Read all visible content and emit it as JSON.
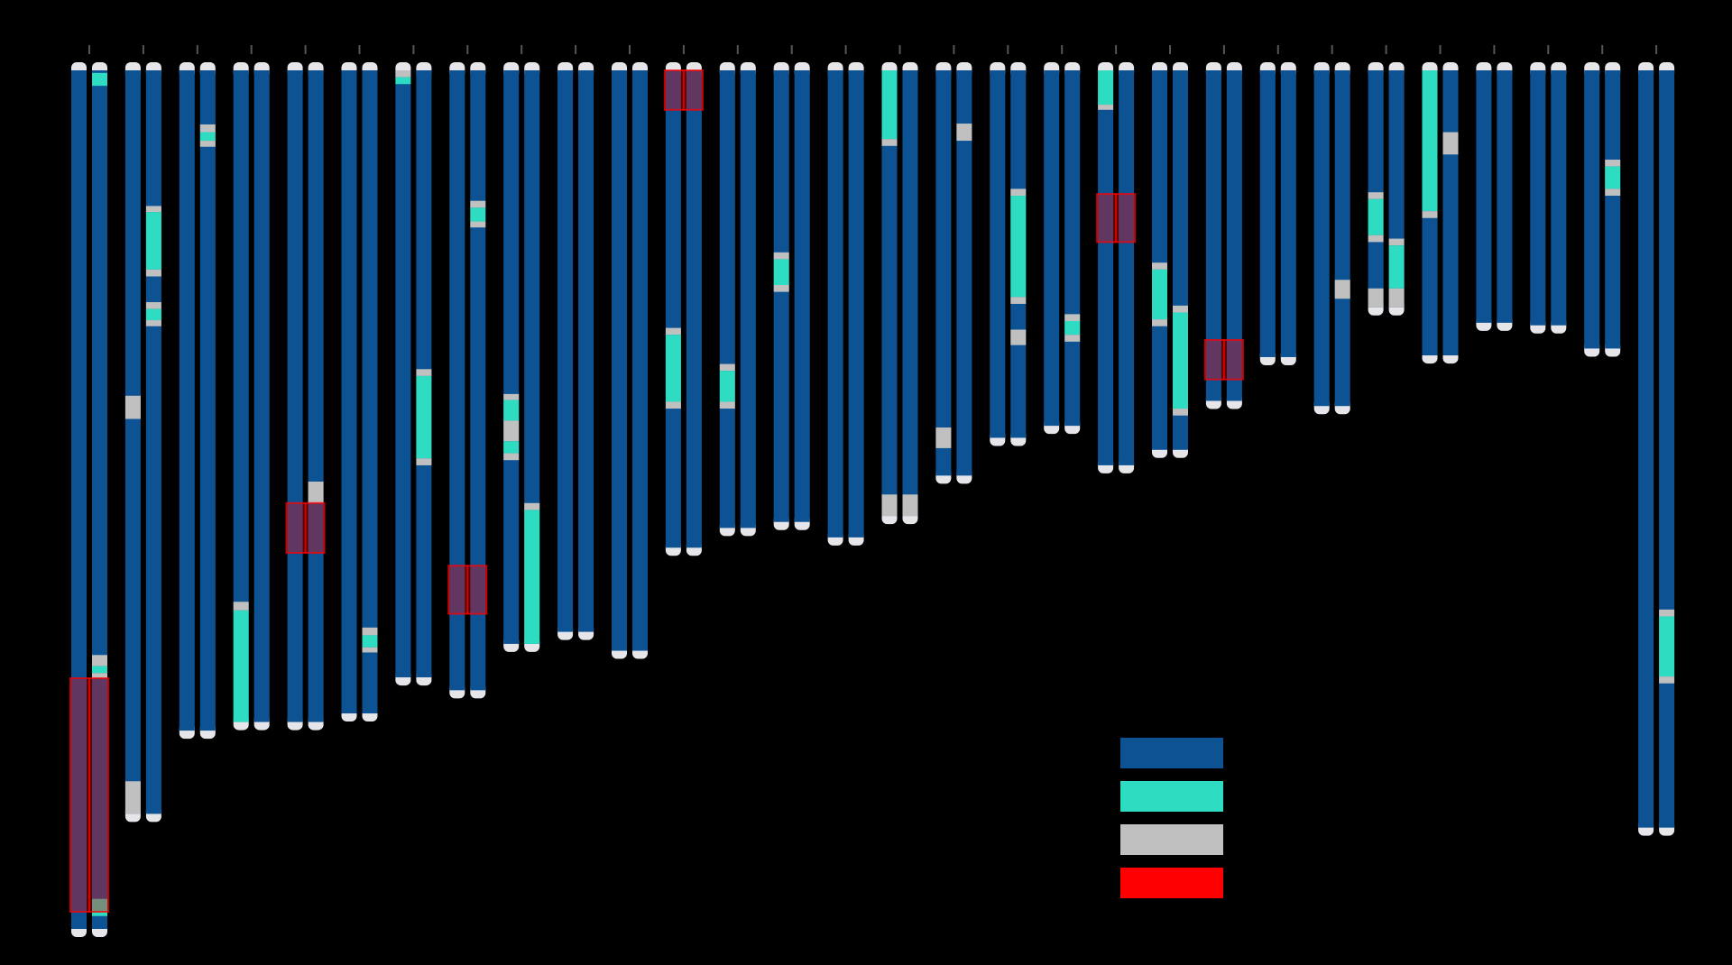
{
  "title": "",
  "colors": {
    "background": "#000000",
    "chromosome": "#0d5394",
    "variant_a": "#2ddcc1",
    "variant_b": "#c0c0c0",
    "highlight": "#ff0000",
    "telomere": "#e6e6ea",
    "tick": "#555555"
  },
  "legend": [
    {
      "key": "chromosome",
      "color": "#0d5394",
      "label": ""
    },
    {
      "key": "variant_a",
      "color": "#2ddcc1",
      "label": ""
    },
    {
      "key": "variant_b",
      "color": "#c0c0c0",
      "label": ""
    },
    {
      "key": "highlight",
      "color": "#ff0000",
      "label": ""
    }
  ],
  "chromosome_pairs": [
    {
      "length": 1.0,
      "a": [],
      "b": [
        [
          0.003,
          0.018,
          "variant_a"
        ],
        [
          0.681,
          0.694,
          "variant_b"
        ],
        [
          0.694,
          0.702,
          "variant_a"
        ],
        [
          0.702,
          0.708,
          "variant_b"
        ],
        [
          0.965,
          0.985,
          "variant_a"
        ]
      ],
      "highlights": [
        [
          0.708,
          0.98
        ]
      ]
    },
    {
      "length": 0.866,
      "a": [
        [
          0.379,
          0.406,
          "variant_b"
        ],
        [
          0.828,
          0.866,
          "variant_b"
        ]
      ],
      "b": [
        [
          0.158,
          0.165,
          "variant_b"
        ],
        [
          0.165,
          0.232,
          "variant_a"
        ],
        [
          0.232,
          0.24,
          "variant_b"
        ],
        [
          0.27,
          0.278,
          "variant_b"
        ],
        [
          0.278,
          0.291,
          "variant_a"
        ],
        [
          0.291,
          0.298,
          "variant_b"
        ]
      ],
      "highlights": []
    },
    {
      "length": 0.769,
      "a": [],
      "b": [
        [
          0.063,
          0.072,
          "variant_b"
        ],
        [
          0.072,
          0.082,
          "variant_a"
        ],
        [
          0.082,
          0.089,
          "variant_b"
        ]
      ],
      "highlights": []
    },
    {
      "length": 0.759,
      "a": [
        [
          0.619,
          0.629,
          "variant_b"
        ],
        [
          0.629,
          0.759,
          "variant_a"
        ]
      ],
      "b": [],
      "highlights": []
    },
    {
      "length": 0.759,
      "a": [],
      "b": [
        [
          0.479,
          0.504,
          "variant_b"
        ]
      ],
      "highlights": [
        [
          0.504,
          0.562
        ]
      ]
    },
    {
      "length": 0.749,
      "a": [],
      "b": [
        [
          0.649,
          0.658,
          "variant_b"
        ],
        [
          0.658,
          0.672,
          "variant_a"
        ],
        [
          0.672,
          0.678,
          "variant_b"
        ]
      ],
      "highlights": []
    },
    {
      "length": 0.707,
      "a": [
        [
          0.0,
          0.008,
          "variant_b"
        ],
        [
          0.008,
          0.016,
          "variant_a"
        ]
      ],
      "b": [
        [
          0.348,
          0.356,
          "variant_b"
        ],
        [
          0.356,
          0.452,
          "variant_a"
        ],
        [
          0.452,
          0.46,
          "variant_b"
        ]
      ],
      "highlights": []
    },
    {
      "length": 0.722,
      "a": [],
      "b": [
        [
          0.152,
          0.16,
          "variant_b"
        ],
        [
          0.16,
          0.176,
          "variant_a"
        ],
        [
          0.176,
          0.183,
          "variant_b"
        ]
      ],
      "highlights": [
        [
          0.577,
          0.633
        ]
      ]
    },
    {
      "length": 0.668,
      "a": [
        [
          0.377,
          0.384,
          "variant_b"
        ],
        [
          0.384,
          0.408,
          "variant_a"
        ],
        [
          0.408,
          0.432,
          "variant_b"
        ],
        [
          0.432,
          0.446,
          "variant_a"
        ],
        [
          0.446,
          0.454,
          "variant_b"
        ]
      ],
      "b": [
        [
          0.504,
          0.512,
          "variant_b"
        ],
        [
          0.512,
          0.668,
          "variant_a"
        ]
      ],
      "highlights": []
    },
    {
      "length": 0.654,
      "a": [],
      "b": [],
      "highlights": []
    },
    {
      "length": 0.676,
      "a": [],
      "b": [],
      "highlights": []
    },
    {
      "length": 0.556,
      "a": [
        [
          0.3,
          0.308,
          "variant_b"
        ],
        [
          0.308,
          0.386,
          "variant_a"
        ],
        [
          0.386,
          0.394,
          "variant_b"
        ]
      ],
      "b": [],
      "highlights": [
        [
          0.0,
          0.046
        ]
      ]
    },
    {
      "length": 0.533,
      "a": [
        [
          0.342,
          0.35,
          "variant_b"
        ],
        [
          0.35,
          0.386,
          "variant_a"
        ],
        [
          0.386,
          0.394,
          "variant_b"
        ]
      ],
      "b": [],
      "highlights": []
    },
    {
      "length": 0.526,
      "a": [
        [
          0.212,
          0.22,
          "variant_b"
        ],
        [
          0.22,
          0.25,
          "variant_a"
        ],
        [
          0.25,
          0.258,
          "variant_b"
        ]
      ],
      "b": [],
      "highlights": []
    },
    {
      "length": 0.544,
      "a": [],
      "b": [],
      "highlights": []
    },
    {
      "length": 0.519,
      "a": [
        [
          0.0,
          0.08,
          "variant_a"
        ],
        [
          0.08,
          0.088,
          "variant_b"
        ],
        [
          0.494,
          0.519,
          "variant_b"
        ]
      ],
      "b": [
        [
          0.494,
          0.519,
          "variant_b"
        ]
      ],
      "highlights": []
    },
    {
      "length": 0.472,
      "a": [
        [
          0.416,
          0.44,
          "variant_b"
        ]
      ],
      "b": [
        [
          0.062,
          0.082,
          "variant_b"
        ]
      ],
      "highlights": []
    },
    {
      "length": 0.428,
      "a": [],
      "b": [
        [
          0.138,
          0.146,
          "variant_b"
        ],
        [
          0.146,
          0.264,
          "variant_a"
        ],
        [
          0.264,
          0.272,
          "variant_b"
        ],
        [
          0.302,
          0.32,
          "variant_b"
        ]
      ],
      "highlights": []
    },
    {
      "length": 0.414,
      "a": [],
      "b": [
        [
          0.284,
          0.292,
          "variant_b"
        ],
        [
          0.292,
          0.308,
          "variant_a"
        ],
        [
          0.308,
          0.316,
          "variant_b"
        ]
      ],
      "highlights": []
    },
    {
      "length": 0.46,
      "a": [
        [
          0.0,
          0.04,
          "variant_a"
        ],
        [
          0.04,
          0.046,
          "variant_b"
        ]
      ],
      "b": [],
      "highlights": [
        [
          0.144,
          0.2
        ]
      ]
    },
    {
      "length": 0.442,
      "a": [
        [
          0.224,
          0.232,
          "variant_b"
        ],
        [
          0.232,
          0.29,
          "variant_a"
        ],
        [
          0.29,
          0.298,
          "variant_b"
        ]
      ],
      "b": [
        [
          0.274,
          0.282,
          "variant_b"
        ],
        [
          0.282,
          0.394,
          "variant_a"
        ],
        [
          0.394,
          0.402,
          "variant_b"
        ]
      ],
      "highlights": []
    },
    {
      "length": 0.385,
      "a": [],
      "b": [],
      "highlights": [
        [
          0.314,
          0.36
        ]
      ]
    },
    {
      "length": 0.334,
      "a": [],
      "b": [],
      "highlights": []
    },
    {
      "length": 0.391,
      "a": [],
      "b": [
        [
          0.244,
          0.266,
          "variant_b"
        ]
      ],
      "highlights": []
    },
    {
      "length": 0.276,
      "a": [
        [
          0.142,
          0.15,
          "variant_b"
        ],
        [
          0.15,
          0.192,
          "variant_a"
        ],
        [
          0.192,
          0.2,
          "variant_b"
        ],
        [
          0.254,
          0.276,
          "variant_b"
        ]
      ],
      "b": [
        [
          0.196,
          0.204,
          "variant_b"
        ],
        [
          0.204,
          0.254,
          "variant_a"
        ],
        [
          0.254,
          0.276,
          "variant_b"
        ]
      ],
      "highlights": []
    },
    {
      "length": 0.332,
      "a": [
        [
          0.0,
          0.164,
          "variant_a"
        ],
        [
          0.164,
          0.172,
          "variant_b"
        ]
      ],
      "b": [
        [
          0.072,
          0.098,
          "variant_b"
        ]
      ],
      "highlights": []
    },
    {
      "length": 0.294,
      "a": [],
      "b": [],
      "highlights": []
    },
    {
      "length": 0.297,
      "a": [],
      "b": [],
      "highlights": []
    },
    {
      "length": 0.324,
      "a": [],
      "b": [
        [
          0.104,
          0.112,
          "variant_b"
        ],
        [
          0.112,
          0.138,
          "variant_a"
        ],
        [
          0.138,
          0.146,
          "variant_b"
        ]
      ],
      "highlights": []
    },
    {
      "length": 0.882,
      "a": [],
      "b": [
        [
          0.628,
          0.636,
          "variant_b"
        ],
        [
          0.636,
          0.706,
          "variant_a"
        ],
        [
          0.706,
          0.714,
          "variant_b"
        ]
      ],
      "highlights": []
    }
  ]
}
